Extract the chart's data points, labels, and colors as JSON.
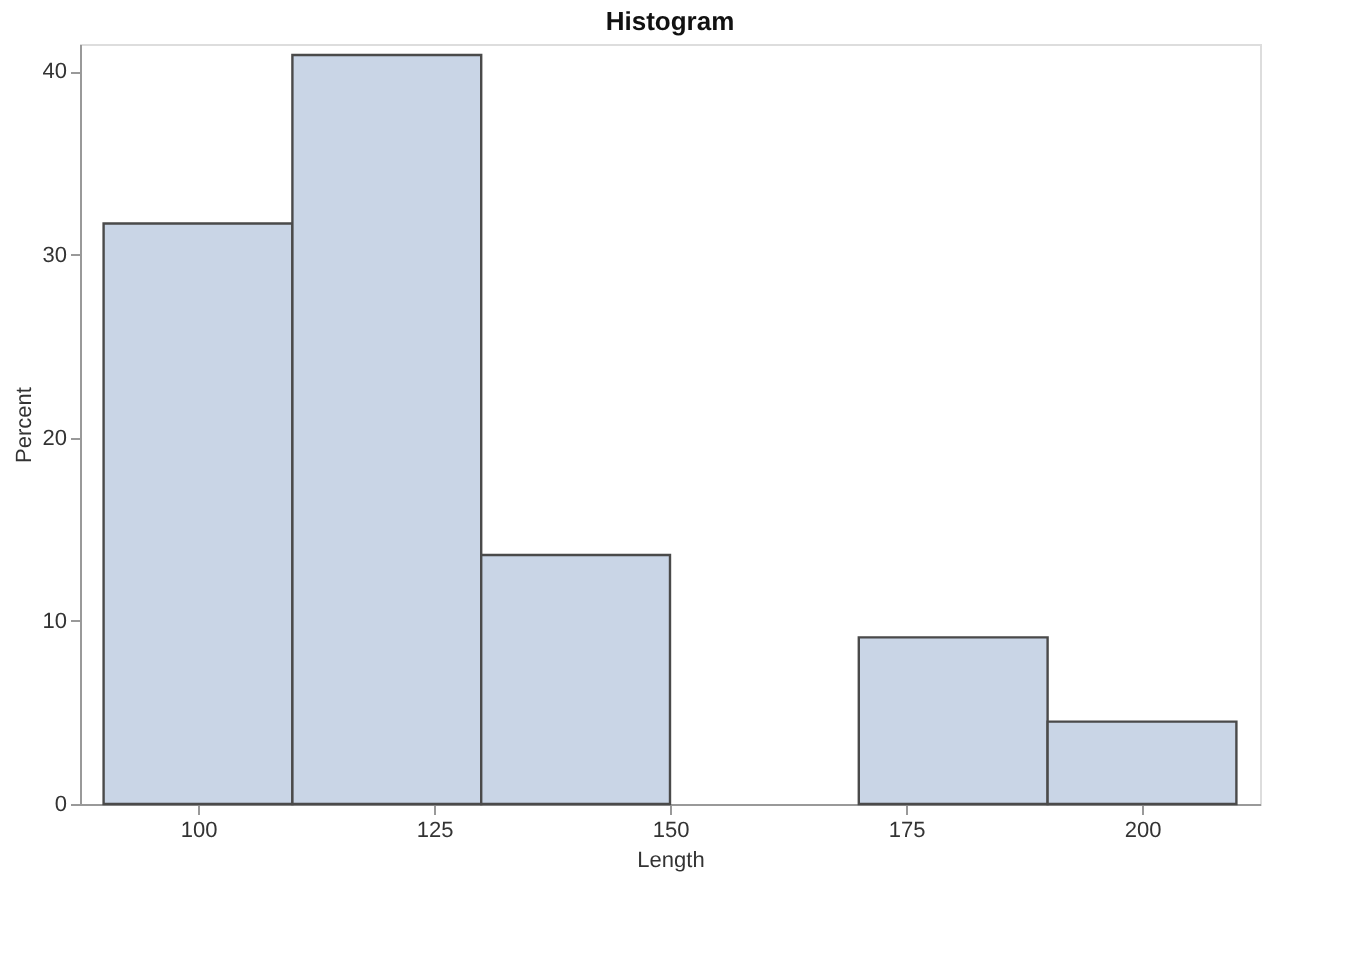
{
  "chart_data": {
    "type": "histogram",
    "title": "Histogram",
    "xlabel": "Length",
    "ylabel": "Percent",
    "bins": [
      90,
      110,
      130,
      150,
      170,
      190,
      210
    ],
    "values": [
      31.7,
      40.9,
      13.6,
      0,
      9.1,
      4.5
    ],
    "color": "#c9d5e6",
    "xlim": [
      87.5,
      212.5
    ],
    "xticks": [
      100,
      125,
      150,
      175,
      200
    ],
    "ylim": [
      0,
      41.5
    ],
    "yticks": [
      0,
      10,
      20,
      30,
      40
    ],
    "grid": false
  }
}
